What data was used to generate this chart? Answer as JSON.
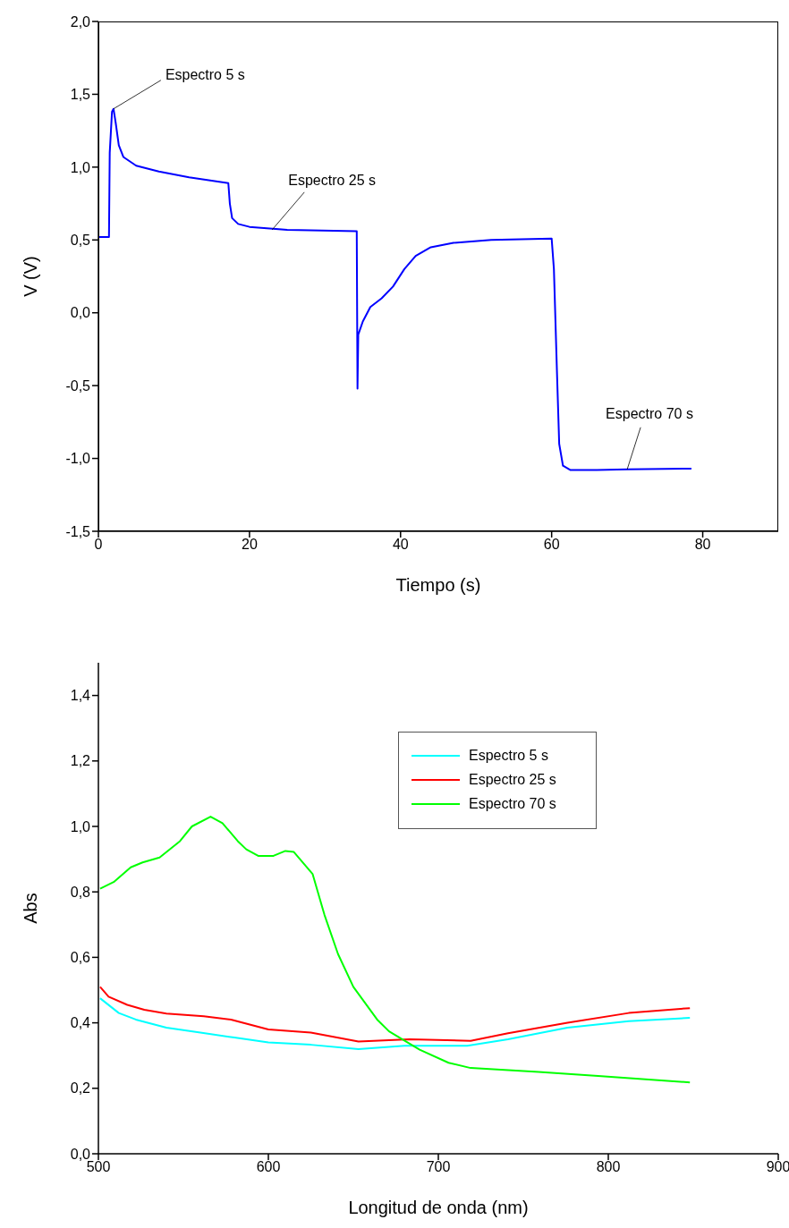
{
  "chart_data": [
    {
      "type": "line",
      "xlabel": "Tiempo (s)",
      "ylabel": "V (V)",
      "xlim": [
        0,
        90
      ],
      "xticks": [
        0,
        20,
        40,
        60,
        80
      ],
      "ylim": [
        -1.5,
        2.0
      ],
      "yticks": [
        {
          "value": -1.5,
          "label": "-1,5"
        },
        {
          "value": -1.0,
          "label": "-1,0"
        },
        {
          "value": -0.5,
          "label": "-0,5"
        },
        {
          "value": 0,
          "label": "0,0"
        },
        {
          "value": 0.5,
          "label": "0,5"
        },
        {
          "value": 1.0,
          "label": "1,0"
        },
        {
          "value": 1.5,
          "label": "1,5"
        },
        {
          "value": 2.0,
          "label": "2,0"
        }
      ],
      "grid": false,
      "legend": false,
      "marker": "none",
      "line_style": "solid",
      "series": [
        {
          "color": "#0000ff",
          "x": [
            0,
            1.4,
            1.5,
            1.8,
            2.0,
            2.3,
            2.7,
            3.3,
            5,
            8,
            12,
            17.2,
            17.4,
            17.7,
            18.5,
            20,
            25,
            34.2,
            34.3,
            34.4,
            35,
            36,
            37.5,
            39,
            40.5,
            42,
            44,
            47,
            52,
            60,
            60.3,
            60.7,
            61,
            61.5,
            62.5,
            66,
            70,
            78.5
          ],
          "values": [
            0.52,
            0.52,
            1.1,
            1.38,
            1.4,
            1.3,
            1.15,
            1.07,
            1.01,
            0.97,
            0.93,
            0.89,
            0.75,
            0.65,
            0.61,
            0.59,
            0.57,
            0.56,
            -0.52,
            -0.15,
            -0.06,
            0.04,
            0.1,
            0.18,
            0.3,
            0.39,
            0.45,
            0.48,
            0.5,
            0.51,
            0.3,
            -0.4,
            -0.9,
            -1.05,
            -1.08,
            -1.08,
            -1.075,
            -1.07
          ]
        }
      ],
      "annotations": [
        {
          "text": "Espectro 5 s",
          "x": 2,
          "y": 1.4
        },
        {
          "text": "Espectro 25 s",
          "x": 23,
          "y": 0.57
        },
        {
          "text": "Espectro 70 s",
          "x": 70,
          "y": -1.075
        }
      ]
    },
    {
      "type": "line",
      "xlabel": "Longitud de onda (nm)",
      "ylabel": "Abs",
      "xlim": [
        500,
        900
      ],
      "xticks": [
        500,
        600,
        700,
        800,
        900
      ],
      "ylim": [
        0,
        1.5
      ],
      "yticks": [
        {
          "value": 0,
          "label": "0,0"
        },
        {
          "value": 0.2,
          "label": "0,2"
        },
        {
          "value": 0.4,
          "label": "0,4"
        },
        {
          "value": 0.6,
          "label": "0,6"
        },
        {
          "value": 0.8,
          "label": "0,8"
        },
        {
          "value": 1.0,
          "label": "1,0"
        },
        {
          "value": 1.2,
          "label": "1,2"
        },
        {
          "value": 1.4,
          "label": "1,4"
        }
      ],
      "grid": false,
      "legend": "top right",
      "marker": "none",
      "line_style": "solid",
      "series": [
        {
          "name": "Espectro 5 s",
          "color": "#00ffff",
          "x": [
            501,
            512,
            522,
            540,
            560,
            580,
            600,
            625,
            653,
            680,
            717,
            741,
            776,
            812,
            848
          ],
          "values": [
            0.475,
            0.43,
            0.41,
            0.385,
            0.37,
            0.355,
            0.34,
            0.333,
            0.32,
            0.33,
            0.33,
            0.35,
            0.385,
            0.405,
            0.415
          ]
        },
        {
          "name": "Espectro 25 s",
          "color": "#ff0000",
          "x": [
            501,
            506,
            517,
            527,
            540,
            562,
            578,
            600,
            625,
            653,
            683,
            719,
            741,
            776,
            812,
            848
          ],
          "values": [
            0.51,
            0.48,
            0.455,
            0.44,
            0.428,
            0.42,
            0.41,
            0.38,
            0.37,
            0.343,
            0.35,
            0.345,
            0.368,
            0.4,
            0.43,
            0.445
          ]
        },
        {
          "name": "Espectro 70 s",
          "color": "#00ff00",
          "x": [
            501,
            509,
            519,
            526,
            536,
            548,
            555,
            566,
            573,
            582,
            587,
            594,
            603,
            610,
            615,
            626,
            633,
            641,
            650,
            664,
            671,
            689,
            706,
            719,
            759,
            794,
            848
          ],
          "values": [
            0.81,
            0.83,
            0.875,
            0.89,
            0.905,
            0.955,
            1.0,
            1.03,
            1.01,
            0.955,
            0.93,
            0.91,
            0.91,
            0.925,
            0.922,
            0.855,
            0.73,
            0.61,
            0.51,
            0.41,
            0.374,
            0.318,
            0.278,
            0.262,
            0.25,
            0.238,
            0.218
          ]
        }
      ]
    }
  ]
}
